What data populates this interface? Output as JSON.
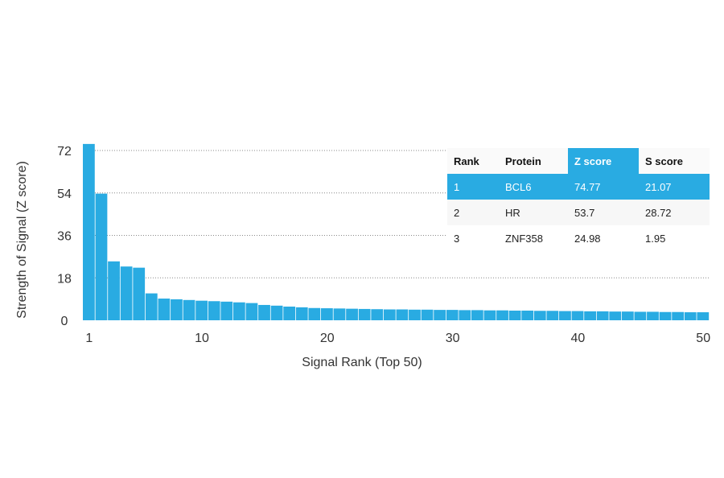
{
  "chart_data": {
    "type": "bar",
    "xlabel": "Signal Rank (Top 50)",
    "ylabel": "Strength of Signal (Z score)",
    "ylim": [
      0,
      72
    ],
    "yticks": [
      0,
      18,
      36,
      54,
      72
    ],
    "xticks": [
      1,
      10,
      20,
      30,
      40,
      50
    ],
    "grid": "horizontal dotted",
    "color": "#29abe2",
    "x": [
      1,
      2,
      3,
      4,
      5,
      6,
      7,
      8,
      9,
      10,
      11,
      12,
      13,
      14,
      15,
      16,
      17,
      18,
      19,
      20,
      21,
      22,
      23,
      24,
      25,
      26,
      27,
      28,
      29,
      30,
      31,
      32,
      33,
      34,
      35,
      36,
      37,
      38,
      39,
      40,
      41,
      42,
      43,
      44,
      45,
      46,
      47,
      48,
      49,
      50
    ],
    "values": [
      74.77,
      53.7,
      24.98,
      22.8,
      22.3,
      11.4,
      9.2,
      8.9,
      8.6,
      8.3,
      8.1,
      7.9,
      7.6,
      7.3,
      6.5,
      6.2,
      5.8,
      5.5,
      5.2,
      5.1,
      5.0,
      4.9,
      4.8,
      4.7,
      4.6,
      4.6,
      4.5,
      4.5,
      4.4,
      4.4,
      4.3,
      4.3,
      4.2,
      4.2,
      4.1,
      4.1,
      4.0,
      4.0,
      3.9,
      3.9,
      3.8,
      3.8,
      3.7,
      3.7,
      3.6,
      3.6,
      3.5,
      3.5,
      3.4,
      3.4
    ]
  },
  "table": {
    "headers": [
      "Rank",
      "Protein",
      "Z score",
      "S score"
    ],
    "rows": [
      [
        "1",
        "BCL6",
        "74.77",
        "21.07"
      ],
      [
        "2",
        "HR",
        "53.7",
        "28.72"
      ],
      [
        "3",
        "ZNF358",
        "24.98",
        "1.95"
      ]
    ],
    "highlight_row": 0,
    "highlight_color": "#29abe2"
  }
}
